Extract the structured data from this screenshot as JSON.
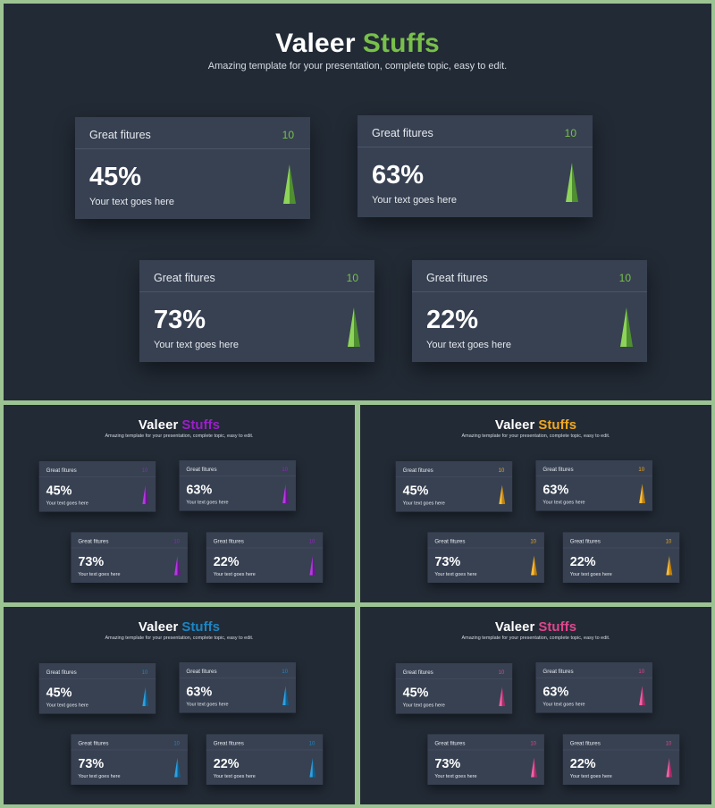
{
  "title": {
    "main": "Valeer",
    "accent": "Stuffs"
  },
  "subtitle": "Amazing template for your presentation, complete topic, easy to edit.",
  "cards": [
    {
      "label": "Great fitures",
      "count": "10",
      "value": "45%",
      "text": "Your text goes here"
    },
    {
      "label": "Great fitures",
      "count": "10",
      "value": "63%",
      "text": "Your text goes here"
    },
    {
      "label": "Great fitures",
      "count": "10",
      "value": "73%",
      "text": "Your text goes here"
    },
    {
      "label": "Great fitures",
      "count": "10",
      "value": "22%",
      "text": "Your text goes here"
    }
  ],
  "themes": [
    {
      "name": "green",
      "accent": "#78c04a",
      "light": "#8ed45a",
      "dark": "#4f8f2f"
    },
    {
      "name": "purple",
      "accent": "#9b1fc9",
      "light": "#b43ae0",
      "dark": "#6e1391"
    },
    {
      "name": "orange",
      "accent": "#f2a81d",
      "light": "#ffbe3b",
      "dark": "#c0800c"
    },
    {
      "name": "blue",
      "accent": "#1b86c4",
      "light": "#2fa0e0",
      "dark": "#0f5f8f"
    },
    {
      "name": "pink",
      "accent": "#e0468e",
      "light": "#f064a6",
      "dark": "#a82a66"
    }
  ]
}
